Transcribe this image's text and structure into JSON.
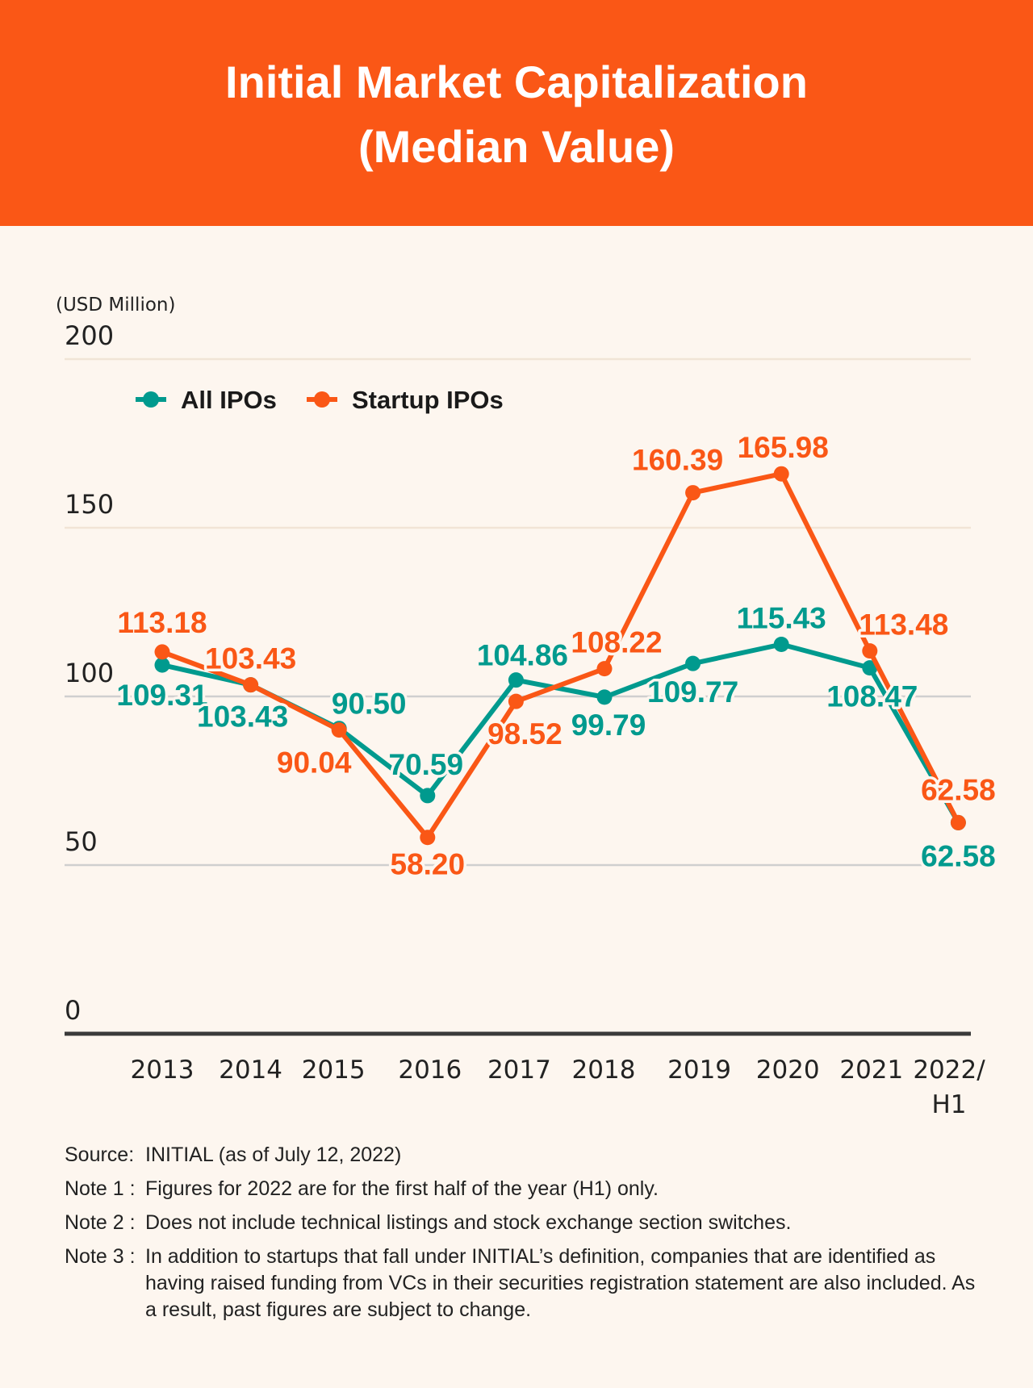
{
  "header": {
    "title_line1": "Initial Market Capitalization",
    "title_line2": "(Median Value)"
  },
  "colors": {
    "header_bg": "#fa5716",
    "background": "#fdf6ef",
    "all_ipos": "#009a8e",
    "startup_ipos": "#fa5716"
  },
  "chart_data": {
    "type": "line",
    "title": "Initial Market Capitalization (Median Value)",
    "ylabel": "(USD Million)",
    "xlabel": "",
    "ylim": [
      0,
      200
    ],
    "yticks": [
      "0",
      "50",
      "100",
      "150",
      "200"
    ],
    "grid": true,
    "legend_position": "top-left",
    "categories": [
      "2013",
      "2014",
      "2015",
      "2016",
      "2017",
      "2018",
      "2019",
      "2020",
      "2021",
      "2022/\nH1"
    ],
    "category_lines": [
      [
        "2013"
      ],
      [
        "2014"
      ],
      [
        "2015"
      ],
      [
        "2016"
      ],
      [
        "2017"
      ],
      [
        "2018"
      ],
      [
        "2019"
      ],
      [
        "2020"
      ],
      [
        "2021"
      ],
      [
        "2022/",
        "H1"
      ]
    ],
    "series": [
      {
        "name": "All IPOs",
        "color": "#009a8e",
        "values": [
          109.31,
          103.43,
          90.5,
          70.59,
          104.86,
          99.79,
          109.77,
          115.43,
          108.47,
          62.58
        ],
        "labels": [
          "109.31",
          "103.43",
          "90.50",
          "70.59",
          "104.86",
          "99.79",
          "109.77",
          "115.43",
          "108.47",
          "62.58"
        ]
      },
      {
        "name": "Startup IPOs",
        "color": "#fa5716",
        "values": [
          113.18,
          103.43,
          90.04,
          58.2,
          98.52,
          108.22,
          160.39,
          165.98,
          113.48,
          62.58
        ],
        "labels": [
          "113.18",
          "103.43",
          "90.04",
          "58.20",
          "98.52",
          "108.22",
          "160.39",
          "165.98",
          "113.48",
          "62.58"
        ]
      }
    ]
  },
  "notes": [
    {
      "key": "Source:",
      "text": "INITIAL (as of July 12, 2022)"
    },
    {
      "key": "Note 1 :",
      "text": "Figures for 2022 are for the first half of the year (H1) only."
    },
    {
      "key": "Note 2 :",
      "text": "Does not include technical listings and stock exchange section switches."
    },
    {
      "key": "Note 3 :",
      "text": "In addition to startups that fall under INITIAL’s definition, companies that are identified as having raised funding from VCs in their securities registration statement are also included. As a result, past figures are subject to change."
    }
  ]
}
